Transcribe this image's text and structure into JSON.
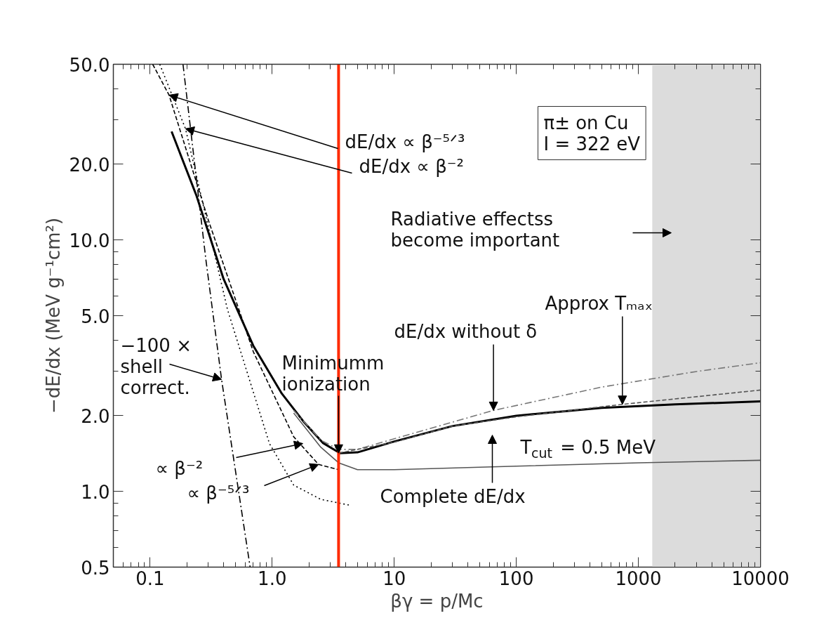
{
  "chart_data": {
    "type": "line",
    "xlabel": "βγ = p/Mc",
    "ylabel": "−dE/dx (MeV g⁻¹cm²)",
    "log": "xy",
    "grid": false,
    "xlim": [
      0.05,
      10000
    ],
    "ylim": [
      0.5,
      50
    ],
    "xticks": [
      {
        "value": 0.1,
        "label": "0.1"
      },
      {
        "value": 1,
        "label": "1.0"
      },
      10,
      100,
      1000,
      10000
    ],
    "yticks": [
      0.5,
      {
        "value": 1,
        "label": "1.0"
      },
      {
        "value": 2,
        "label": "2.0"
      },
      {
        "value": 5,
        "label": "5.0"
      },
      {
        "value": 10,
        "label": "10.0"
      },
      {
        "value": 20,
        "label": "20.0"
      },
      {
        "value": 50,
        "label": "50.0"
      }
    ],
    "series": [
      {
        "color": "#000000",
        "line_style": "solid",
        "x": [
          0.15,
          0.24,
          0.4,
          0.7,
          1.2,
          1.8,
          2.6,
          3.6,
          5,
          10,
          30,
          100,
          500,
          2000,
          10000
        ],
        "values": [
          27,
          15,
          7,
          3.8,
          2.45,
          1.9,
          1.56,
          1.42,
          1.43,
          1.58,
          1.82,
          2.0,
          2.15,
          2.22,
          2.28
        ]
      },
      {
        "color": "#555555",
        "line_style": "solid",
        "x": [
          1.5,
          2.5,
          3.5,
          5,
          10,
          100,
          1000,
          10000
        ],
        "values": [
          2.05,
          1.5,
          1.3,
          1.22,
          1.22,
          1.26,
          1.3,
          1.33
        ]
      },
      {
        "color": "#777777",
        "line_style": "dashdot",
        "x": [
          1.5,
          2.5,
          3.5,
          5,
          10,
          65,
          500,
          3000,
          10000
        ],
        "values": [
          2.1,
          1.6,
          1.47,
          1.47,
          1.62,
          2.1,
          2.6,
          3.0,
          3.25
        ]
      },
      {
        "color": "#555555",
        "line_style": "dashed",
        "x": [
          3.5,
          10,
          30,
          100,
          740,
          10000
        ],
        "values": [
          1.42,
          1.57,
          1.82,
          1.98,
          2.22,
          2.53
        ]
      },
      {
        "color": "#000000",
        "line_style": "dashed",
        "x": [
          0.105,
          0.143,
          0.3,
          0.7,
          1.5,
          2.4,
          3.5
        ],
        "values": [
          50,
          37.7,
          12,
          3.6,
          1.65,
          1.28,
          1.22
        ]
      },
      {
        "color": "#000000",
        "line_style": "dotted",
        "x": [
          0.12,
          0.195,
          0.43,
          0.95,
          1.5,
          2.5,
          4.4
        ],
        "values": [
          50,
          27.7,
          5.3,
          1.55,
          1.06,
          0.93,
          0.88
        ]
      },
      {
        "color": "#000000",
        "line_style": "dashdot",
        "x": [
          0.186,
          0.286,
          0.385,
          0.66
        ],
        "values": [
          50,
          8.4,
          2.79,
          0.5
        ]
      }
    ],
    "ref_lines": [
      {
        "axis": "x",
        "value": 3.5,
        "color": "#ff2a00"
      }
    ],
    "bands": [
      {
        "axis": "x",
        "from": 1300,
        "to": 10000,
        "color": "#dcdcdc"
      }
    ],
    "annotations": [
      {
        "text": "dE/dx ∝ β⁻⁵ᐟ³",
        "x": 0.143,
        "y": 37.7
      },
      {
        "text": "dE/dx ∝ β⁻²",
        "x": 0.195,
        "y": 27.7
      },
      "π± on Cu\nI = 322 eV",
      "Radiative effectss\nbecome important",
      {
        "text": "Approx Tₘₐₓ",
        "x": 740,
        "y": 2.22
      },
      {
        "text": "dE/dx without δ",
        "x": 65,
        "y": 2.1
      },
      "T$_{cut}$ = 0.5 MeV",
      "Complete dE/dx",
      {
        "text": "Minimumm\nionization",
        "x": 3.5,
        "y": 1.42
      },
      {
        "text": "−100 ×\nshell\ncorrect.",
        "x": 0.385,
        "y": 2.79
      },
      "∝ β⁻²",
      {
        "text": "∝ β⁻⁵ᐟ³",
        "x": 2.4,
        "y": 1.28
      }
    ]
  }
}
